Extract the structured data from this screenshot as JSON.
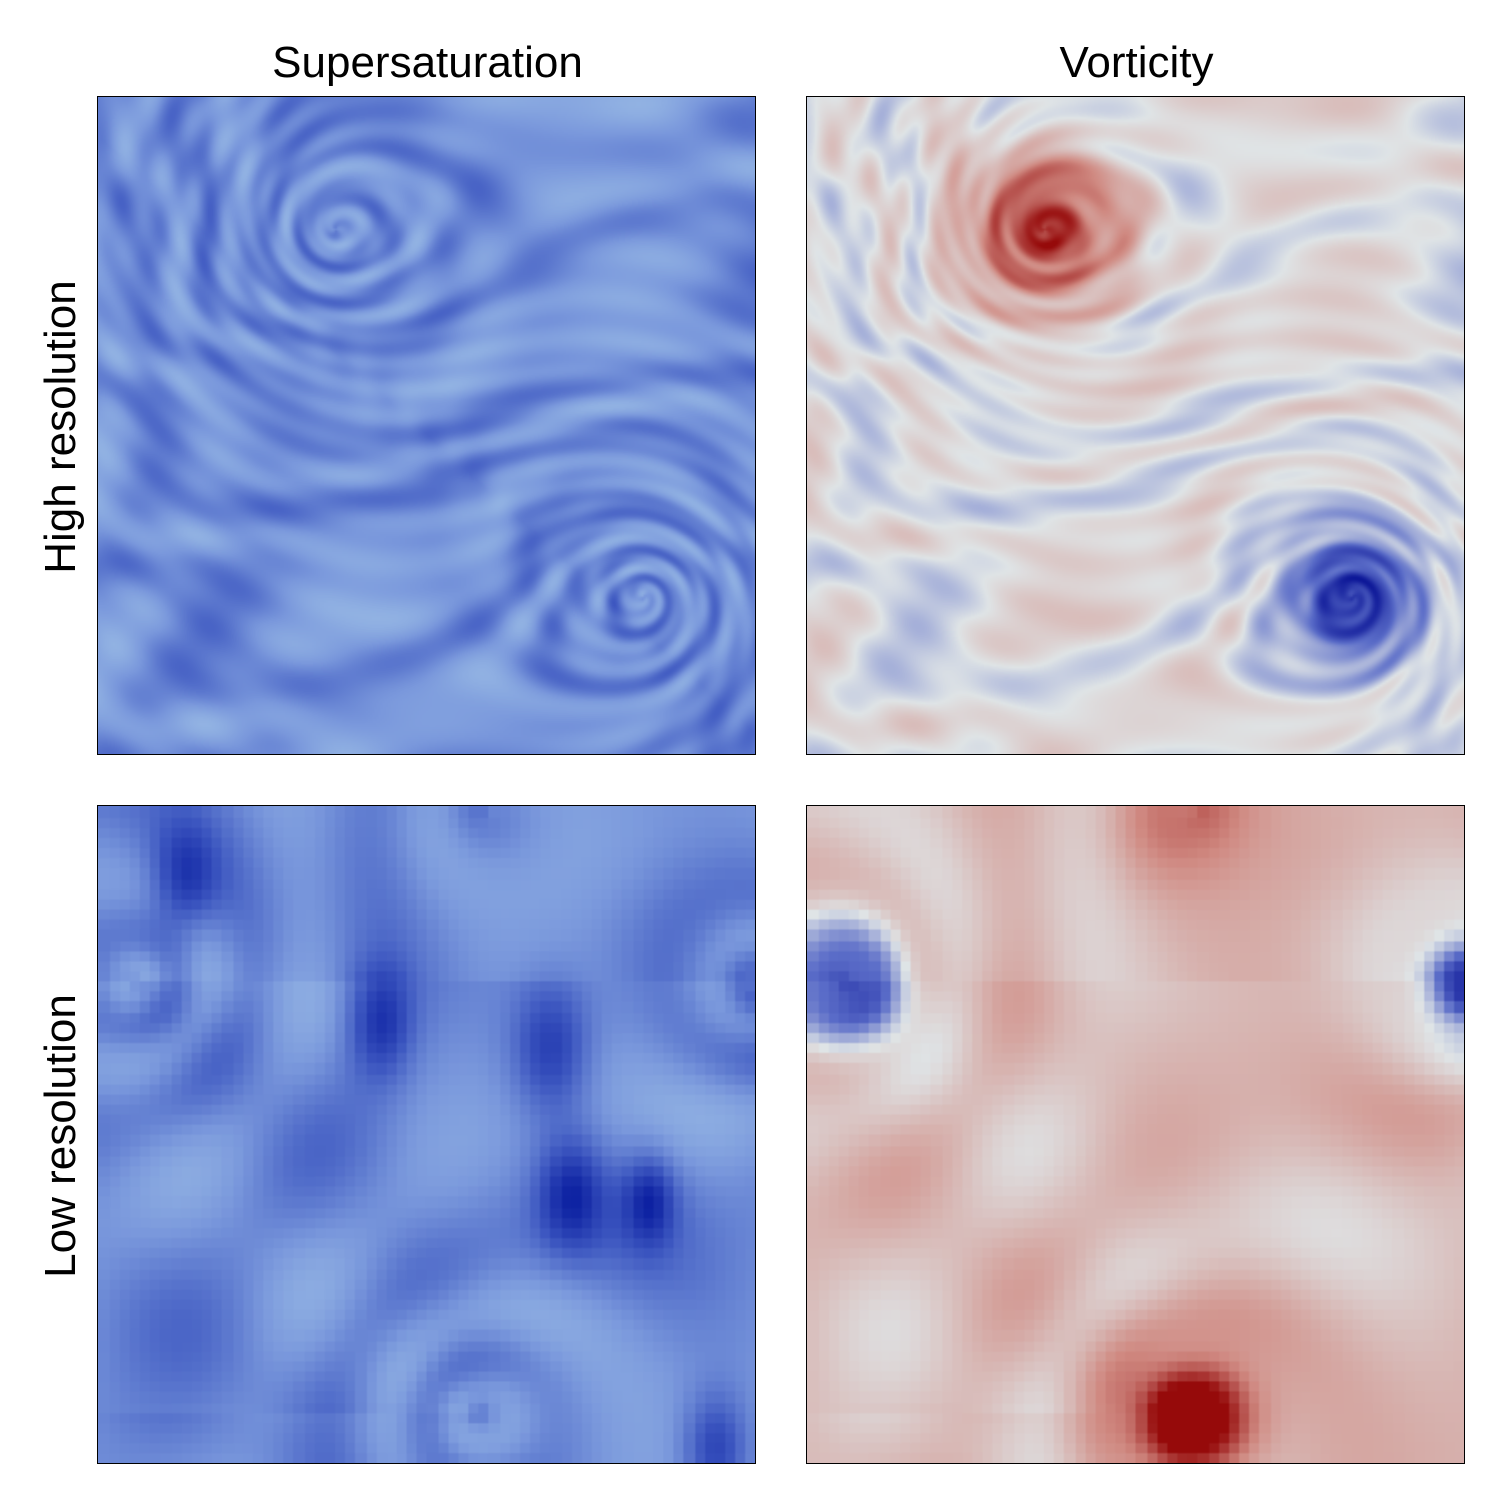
{
  "columns": [
    "Supersaturation",
    "Vorticity"
  ],
  "rows": [
    "High resolution",
    "Low resolution"
  ],
  "panels": [
    {
      "field": "supersaturation",
      "resolution": "high",
      "colormap": "blues"
    },
    {
      "field": "vorticity",
      "resolution": "high",
      "colormap": "diverging-blue-white-red"
    },
    {
      "field": "supersaturation",
      "resolution": "low",
      "colormap": "blues"
    },
    {
      "field": "vorticity",
      "resolution": "low",
      "colormap": "diverging-blue-white-red"
    }
  ],
  "colors": {
    "blues": [
      "#0a1ea0",
      "#3c56c0",
      "#7a98dc",
      "#a8cbe9"
    ],
    "diverging": [
      "#0a1496",
      "#5a6cc8",
      "#dfe4e6",
      "#d08a82",
      "#960a0a"
    ]
  }
}
